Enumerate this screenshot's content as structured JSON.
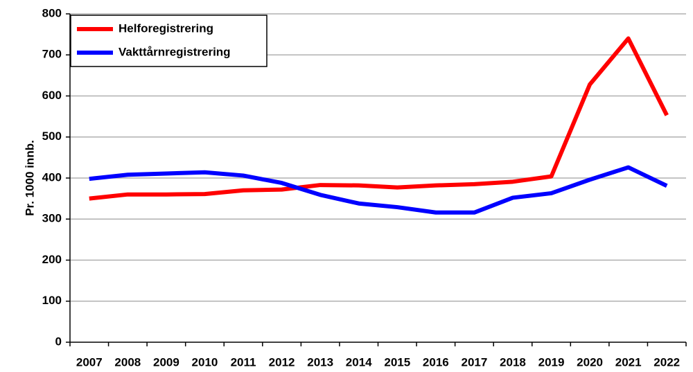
{
  "chart_data": {
    "type": "line",
    "y_axis_label": "Pr. 1000 innb.",
    "categories": [
      "2007",
      "2008",
      "2009",
      "2010",
      "2011",
      "2012",
      "2013",
      "2014",
      "2015",
      "2016",
      "2017",
      "2018",
      "2019",
      "2020",
      "2021",
      "2022"
    ],
    "series": [
      {
        "name": "Helforegistrering",
        "color": "#ff0000",
        "values": [
          350,
          360,
          360,
          361,
          370,
          372,
          383,
          382,
          377,
          382,
          385,
          391,
          404,
          628,
          740,
          553
        ]
      },
      {
        "name": "Vakttårnregistrering",
        "color": "#0000ff",
        "values": [
          398,
          408,
          411,
          414,
          406,
          388,
          359,
          338,
          329,
          316,
          316,
          352,
          363,
          396,
          426,
          381
        ]
      }
    ],
    "ylim": [
      0,
      800
    ],
    "yticks": [
      0,
      100,
      200,
      300,
      400,
      500,
      600,
      700,
      800
    ],
    "grid": true,
    "legend": "top-left"
  }
}
